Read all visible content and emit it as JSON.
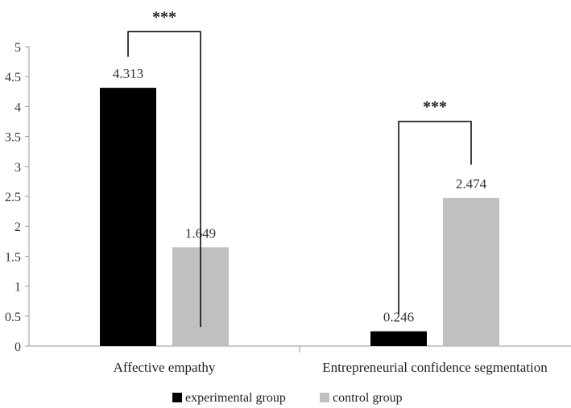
{
  "chart_data": {
    "type": "bar",
    "title": "",
    "xlabel": "",
    "ylabel": "",
    "ylim": [
      0,
      5
    ],
    "yticks": [
      "0",
      "0.5",
      "1",
      "1.5",
      "2",
      "2.5",
      "3",
      "3.5",
      "4",
      "4.5",
      "5"
    ],
    "categories": [
      "Affective empathy",
      "Entrepreneurial confidence segmentation"
    ],
    "series": [
      {
        "name": "experimental group",
        "color": "#000000",
        "values": [
          4.313,
          0.246
        ],
        "labels": [
          "4.313",
          "0.246"
        ]
      },
      {
        "name": "control group",
        "color": "#c0c0c0",
        "values": [
          1.649,
          2.474
        ],
        "labels": [
          "1.649",
          "2.474"
        ]
      }
    ],
    "significance": [
      "***",
      "***"
    ],
    "legend_position": "bottom-center",
    "grid": false
  }
}
